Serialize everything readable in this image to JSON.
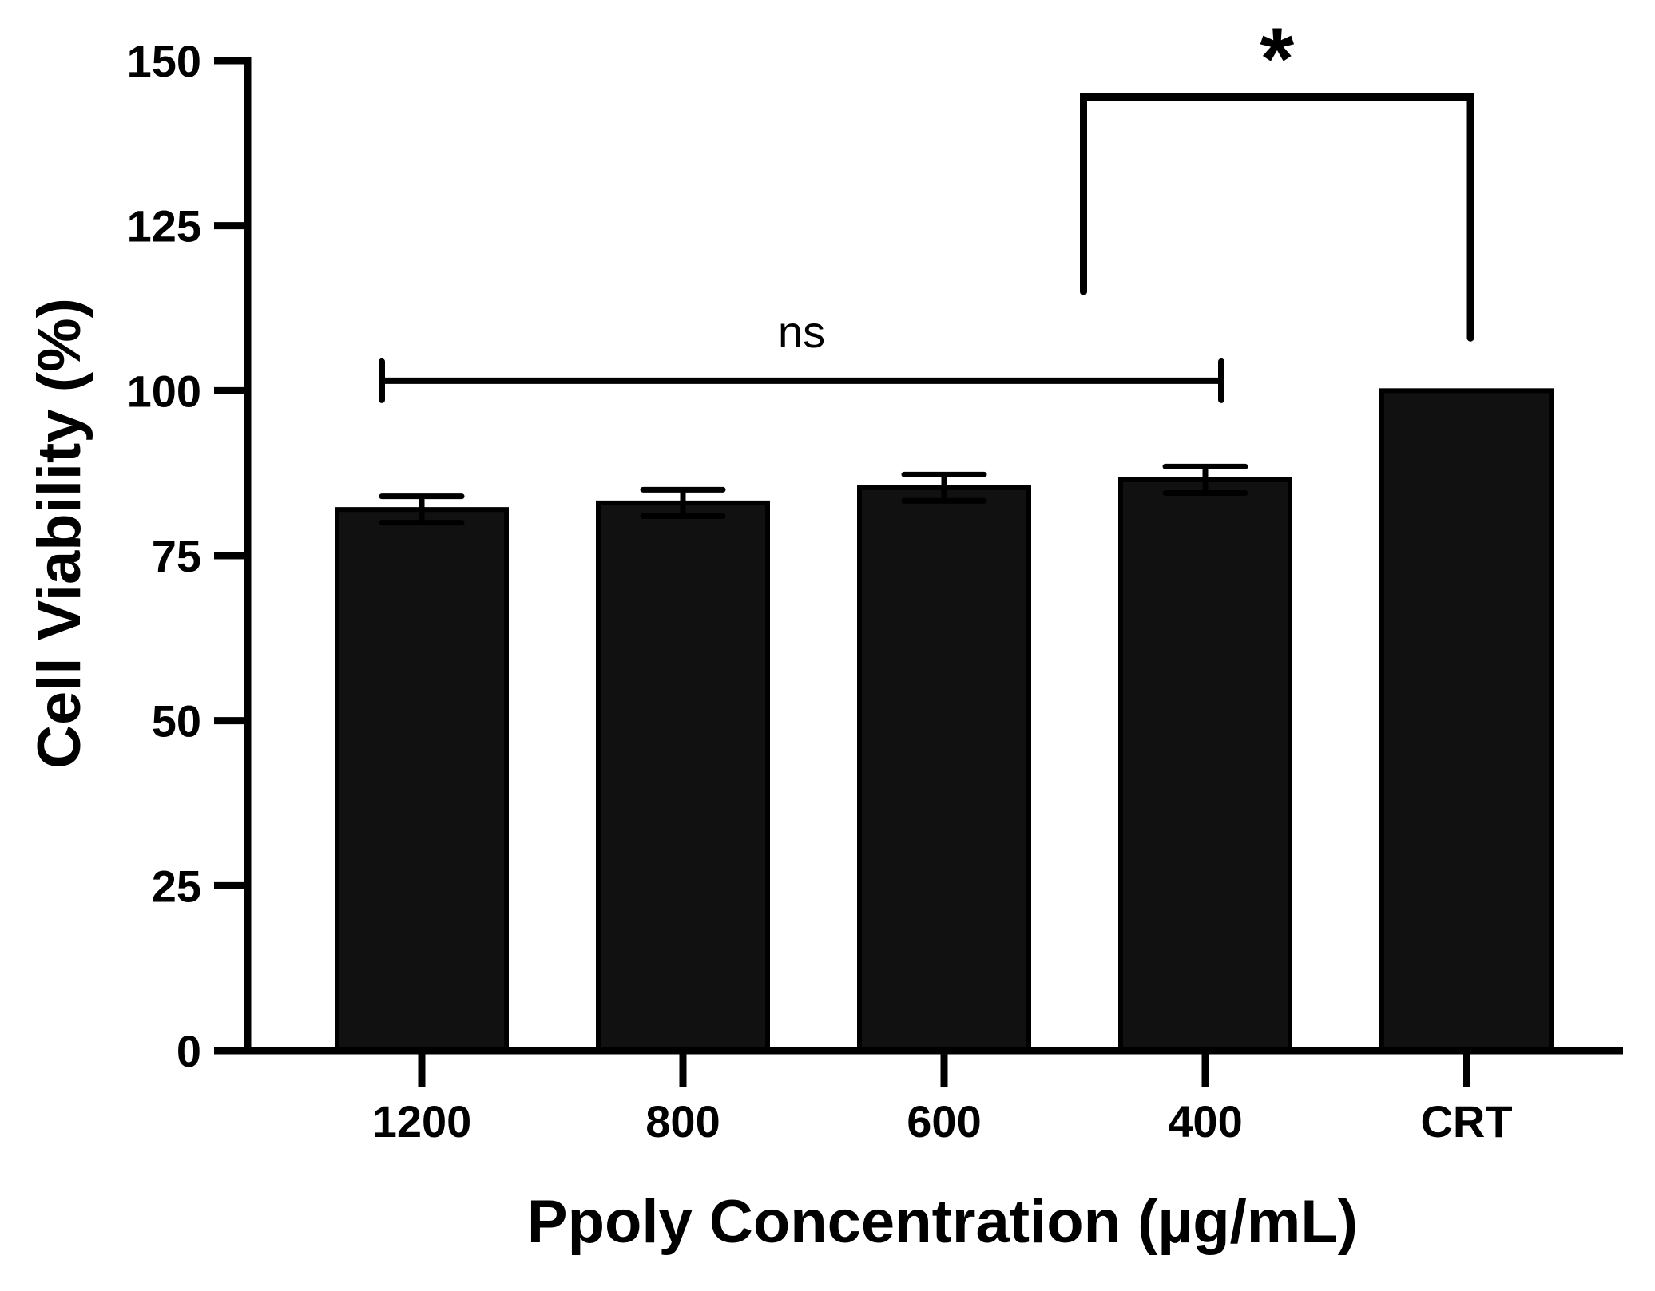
{
  "chart_data": {
    "type": "bar",
    "title": "",
    "xlabel": "Ppoly Concentration (µg/mL)",
    "ylabel": "Cell Viability (%)",
    "categories": [
      "1200",
      "800",
      "600",
      "400",
      "CRT"
    ],
    "values": [
      82,
      83,
      85.3,
      86.5,
      100
    ],
    "error": [
      2,
      2,
      2,
      2,
      0
    ],
    "ylim": [
      0,
      150
    ],
    "yticks": [
      0,
      25,
      50,
      75,
      100,
      125,
      150
    ],
    "ytick_labels": [
      "0",
      "25",
      "50",
      "75",
      "100",
      "125",
      "150"
    ],
    "bar_color": "#111111",
    "annotations": [
      {
        "label": "ns",
        "from": "1200",
        "to": "400",
        "y": 101.5,
        "type": "bracket"
      },
      {
        "label": "*",
        "from_position": 2.5,
        "to": "CRT",
        "y": 144.5,
        "left_drop": 115,
        "right_drop": 108,
        "type": "bracket"
      }
    ]
  }
}
